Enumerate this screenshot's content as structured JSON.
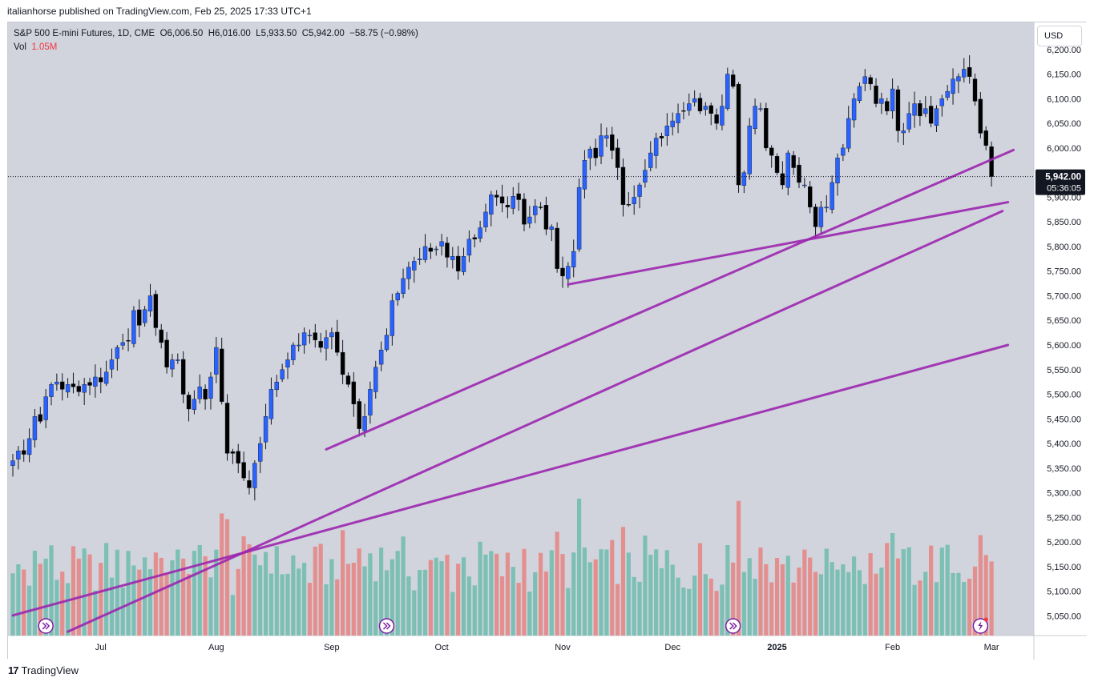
{
  "publisher_line": "italianhorse published on TradingView.com, Feb 25, 2025 17:33 UTC+1",
  "legend": {
    "symbol": "S&P 500 E-mini Futures, 1D, CME",
    "open_label": "O",
    "open": "6,006.50",
    "high_label": "H",
    "high": "6,016.00",
    "low_label": "L",
    "low": "5,933.50",
    "close_label": "C",
    "close": "5,942.00",
    "change": "−58.75 (−0.98%)",
    "vol_label": "Vol",
    "vol_value": "1.05M"
  },
  "currency_button": "USD",
  "footer": {
    "logo_mark": "17",
    "brand": "TradingView"
  },
  "colors": {
    "background": "#d1d4dc",
    "up_candle": "#2962ff",
    "down_candle": "#000000",
    "up_volume": "#7cbfb4",
    "down_volume": "#e48f8f",
    "trendline": "#9c27b0",
    "price_tag_bg": "#131722"
  },
  "chart_data": {
    "type": "candlestick",
    "title": "S&P 500 E-mini Futures, 1D, CME",
    "ylabel": "",
    "xlabel": "",
    "ylim": [
      5010,
      6255
    ],
    "y_ticks": [
      5050,
      5100,
      5150,
      5200,
      5250,
      5300,
      5350,
      5400,
      5450,
      5500,
      5550,
      5600,
      5650,
      5700,
      5750,
      5800,
      5850,
      5900,
      5950,
      6000,
      6050,
      6100,
      6150,
      6200
    ],
    "y_tick_labels": [
      "5,050.00",
      "5,100.00",
      "5,150.00",
      "5,200.00",
      "5,250.00",
      "5,300.00",
      "5,350.00",
      "5,400.00",
      "5,450.00",
      "5,500.00",
      "5,550.00",
      "5,600.00",
      "5,650.00",
      "5,700.00",
      "5,750.00",
      "5,800.00",
      "5,850.00",
      "5,900.00",
      "5,950.00",
      "6,000.00",
      "6,050.00",
      "6,100.00",
      "6,150.00",
      "6,200.00"
    ],
    "x_labels": [
      {
        "label": "Jul",
        "bar": 16
      },
      {
        "label": "Aug",
        "bar": 37
      },
      {
        "label": "Sep",
        "bar": 58
      },
      {
        "label": "Oct",
        "bar": 78
      },
      {
        "label": "Nov",
        "bar": 100
      },
      {
        "label": "Dec",
        "bar": 120
      },
      {
        "label": "2025",
        "bar": 139
      },
      {
        "label": "Feb",
        "bar": 160
      },
      {
        "label": "Mar",
        "bar": 178
      }
    ],
    "last_price": {
      "value": 5942,
      "label": "5,942.00",
      "countdown": "05:36:05"
    },
    "close": [
      5365,
      5385,
      5378,
      5410,
      5455,
      5445,
      5495,
      5520,
      5525,
      5510,
      5520,
      5515,
      5505,
      5520,
      5518,
      5535,
      5525,
      5545,
      5570,
      5595,
      5605,
      5608,
      5670,
      5640,
      5672,
      5700,
      5635,
      5605,
      5555,
      5570,
      5570,
      5500,
      5470,
      5490,
      5515,
      5490,
      5535,
      5595,
      5485,
      5380,
      5380,
      5360,
      5330,
      5310,
      5360,
      5400,
      5455,
      5510,
      5525,
      5550,
      5570,
      5600,
      5600,
      5625,
      5620,
      5610,
      5595,
      5615,
      5625,
      5585,
      5540,
      5520,
      5480,
      5430,
      5455,
      5510,
      5555,
      5590,
      5620,
      5690,
      5705,
      5735,
      5758,
      5770,
      5775,
      5800,
      5790,
      5795,
      5810,
      5778,
      5780,
      5750,
      5780,
      5815,
      5815,
      5838,
      5870,
      5905,
      5900,
      5888,
      5880,
      5902,
      5895,
      5845,
      5860,
      5882,
      5880,
      5835,
      5840,
      5755,
      5740,
      5760,
      5790,
      5920,
      5975,
      5998,
      5980,
      6025,
      6025,
      5995,
      5960,
      5885,
      5885,
      5900,
      5925,
      5955,
      5990,
      6020,
      6020,
      6045,
      6055,
      6070,
      6075,
      6090,
      6100,
      6075,
      6085,
      6070,
      6050,
      6085,
      6150,
      6125,
      5925,
      5950,
      6045,
      6085,
      6080,
      6000,
      5985,
      5950,
      5925,
      5990,
      5960,
      5930,
      5925,
      5880,
      5840,
      5880,
      5880,
      5930,
      5980,
      6000,
      6060,
      6100,
      6125,
      6145,
      6130,
      6090,
      6100,
      6075,
      6120,
      6035,
      6035,
      6070,
      6090,
      6065,
      6080,
      6050,
      6080,
      6100,
      6115,
      6140,
      6145,
      6160,
      6145,
      6095,
      6030,
      6005,
      5942
    ],
    "trendlines": [
      {
        "from": [
          0,
          5051
        ],
        "to": [
          181,
          5600
        ]
      },
      {
        "from": [
          10,
          5018
        ],
        "to": [
          180,
          5872
        ]
      },
      {
        "from": [
          57,
          5388
        ],
        "to": [
          182,
          5996
        ]
      },
      {
        "from": [
          101,
          5723
        ],
        "to": [
          181,
          5890
        ]
      }
    ]
  }
}
